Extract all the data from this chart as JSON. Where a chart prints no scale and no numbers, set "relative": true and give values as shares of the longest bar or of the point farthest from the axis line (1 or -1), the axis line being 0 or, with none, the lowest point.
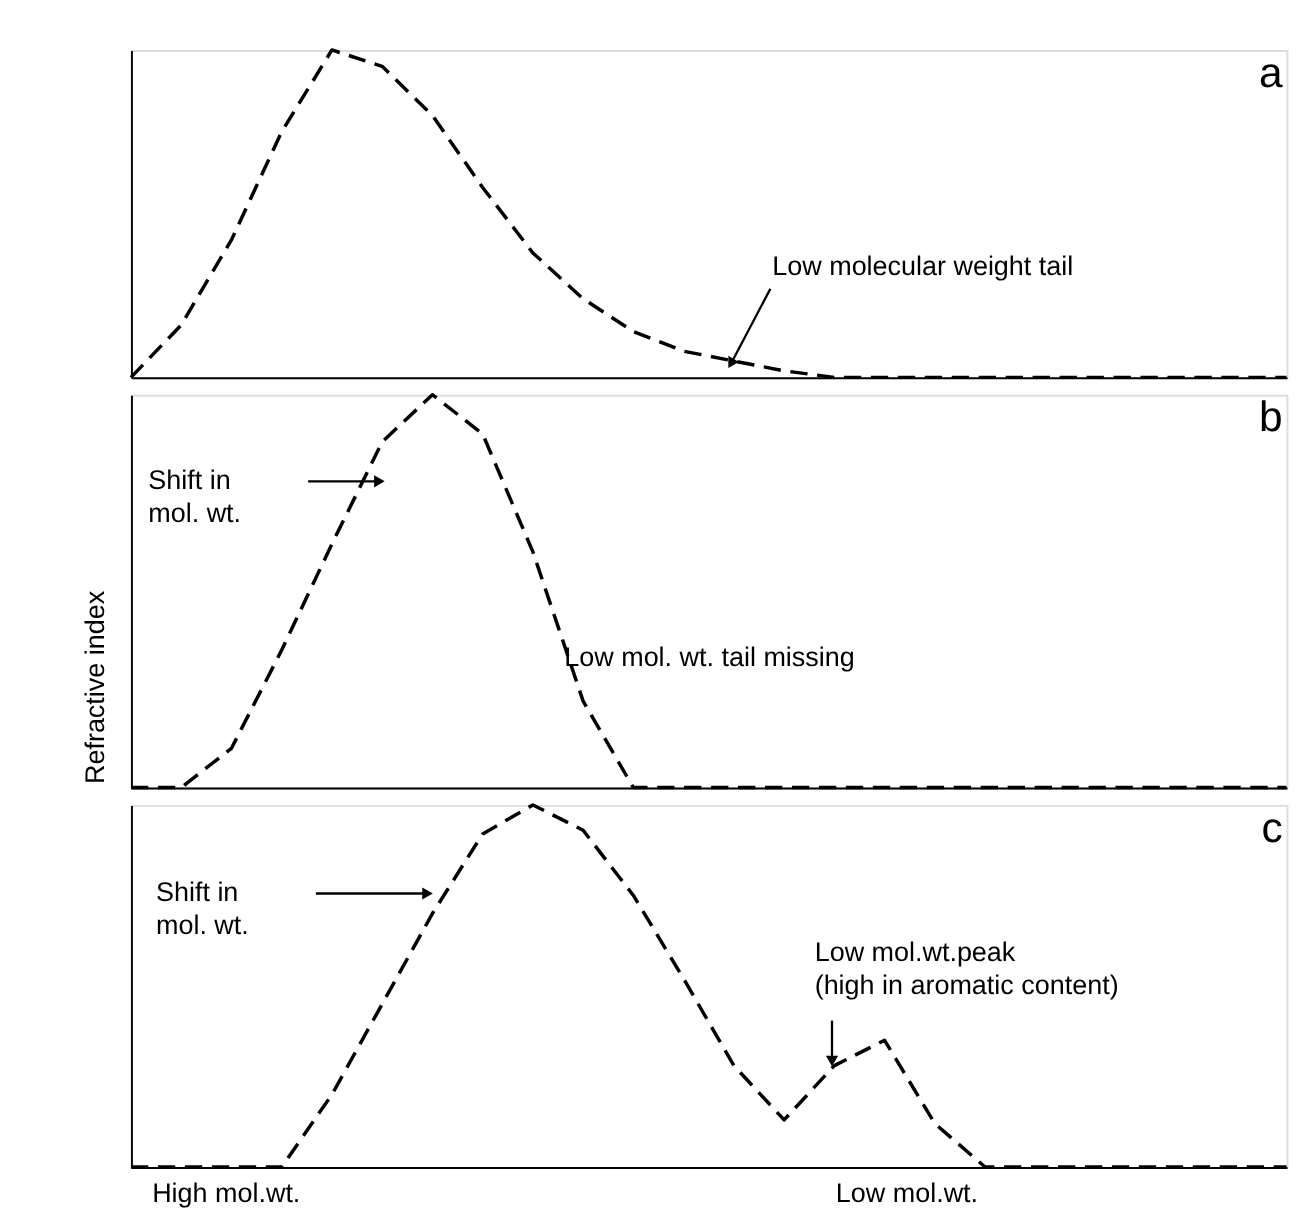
{
  "chart_data": [
    {
      "type": "line",
      "title": "a",
      "color": "#000000",
      "relative": true,
      "line_style": "dashed",
      "tick_labels": false,
      "grid": false,
      "categories": [
        null,
        null,
        null,
        null,
        null,
        null,
        null,
        null,
        null,
        null,
        null,
        null,
        null,
        null,
        null,
        null,
        null,
        null,
        null,
        null,
        null,
        null,
        null,
        null
      ],
      "values": [
        0,
        0.16,
        0.42,
        0.75,
        1,
        0.95,
        0.8,
        0.58,
        0.38,
        0.24,
        0.14,
        0.08,
        0.05,
        0.02,
        0,
        0,
        0,
        0,
        0,
        0,
        0,
        0,
        0,
        0
      ],
      "annotations": [
        "Low molecular weight tail"
      ]
    },
    {
      "type": "line",
      "title": "b",
      "color": "#000000",
      "relative": true,
      "line_style": "dashed",
      "tick_labels": false,
      "grid": false,
      "ylabel": "Refractive index",
      "categories": [
        null,
        null,
        null,
        null,
        null,
        null,
        null,
        null,
        null,
        null,
        null,
        null,
        null,
        null,
        null,
        null,
        null,
        null,
        null,
        null,
        null,
        null,
        null,
        null
      ],
      "values": [
        0,
        0,
        0.1,
        0.35,
        0.62,
        0.88,
        1,
        0.9,
        0.6,
        0.22,
        0,
        0,
        0,
        0,
        0,
        0,
        0,
        0,
        0,
        0,
        0,
        0,
        0,
        0
      ],
      "annotations": [
        "Shift in\nmol. wt.",
        "Low mol. wt. tail missing"
      ]
    },
    {
      "type": "line",
      "title": "c",
      "color": "#000000",
      "relative": true,
      "line_style": "dashed",
      "tick_labels": false,
      "grid": false,
      "categories": [
        null,
        null,
        null,
        null,
        null,
        null,
        null,
        null,
        null,
        null,
        null,
        null,
        null,
        null,
        null,
        null,
        null,
        null,
        null,
        null,
        null,
        null,
        null,
        null
      ],
      "values": [
        0,
        0,
        0,
        0,
        0.2,
        0.45,
        0.7,
        0.92,
        1,
        0.93,
        0.75,
        0.52,
        0.28,
        0.13,
        0.28,
        0.35,
        0.12,
        0,
        0,
        0,
        0,
        0,
        0,
        0
      ],
      "annotations": [
        "Shift in\nmol. wt.",
        "Low mol.wt.peak\n(high in aromatic content)",
        "High mol.wt.",
        "Low mol.wt."
      ]
    }
  ]
}
